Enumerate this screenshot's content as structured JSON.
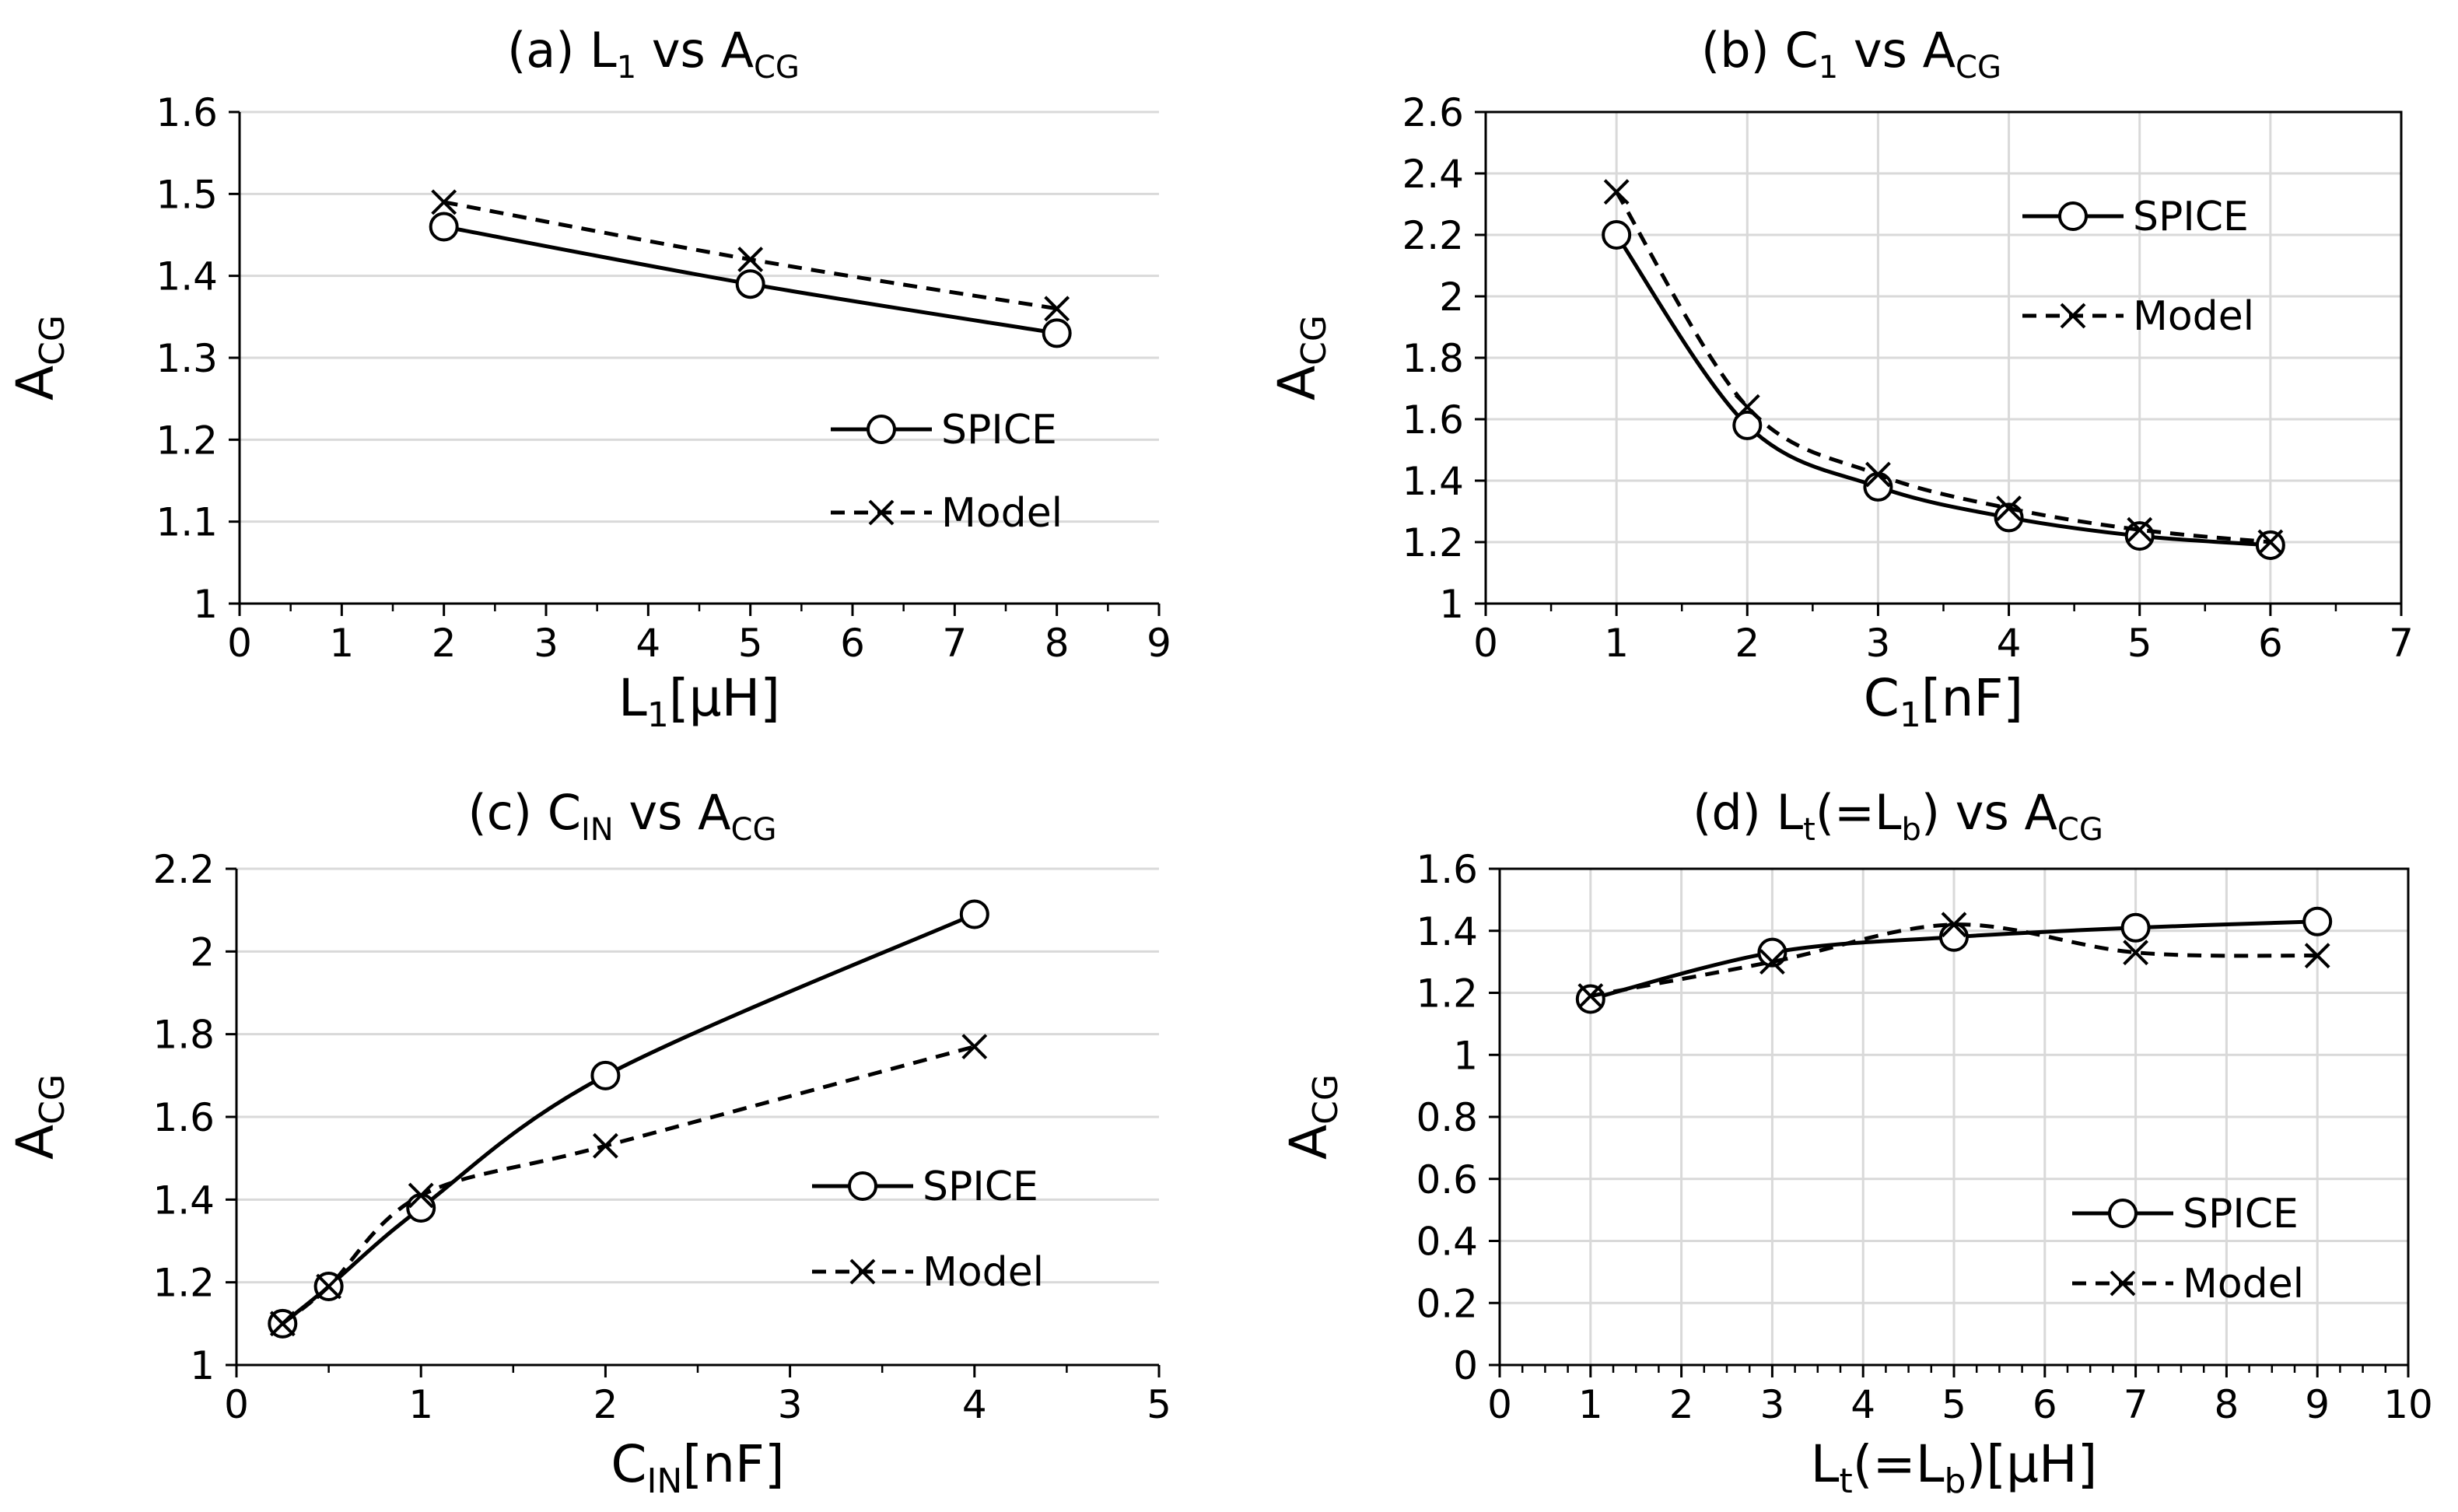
{
  "chart_data": [
    {
      "id": "a",
      "type": "line",
      "title": "(a) L₁ vs A_CG",
      "title_parts": {
        "prefix": "(a) L",
        "sub1": "1",
        "mid": " vs A",
        "sub2": "CG",
        "suffix": ""
      },
      "xlabel": "L₁[μH]",
      "xlabel_parts": {
        "main": "L",
        "sub": "1",
        "rest": "[μH]"
      },
      "ylabel": "A_CG",
      "ylabel_parts": {
        "main": "A",
        "sub": "CG"
      },
      "xlim": [
        0,
        9
      ],
      "xstep": 1,
      "xminor": 0.5,
      "ylim": [
        1,
        1.6
      ],
      "ystep": 0.1,
      "xticks": [
        "0",
        "1",
        "2",
        "3",
        "4",
        "5",
        "6",
        "7",
        "8",
        "9"
      ],
      "yticks": [
        "1",
        "1.1",
        "1.2",
        "1.3",
        "1.4",
        "1.5",
        "1.6"
      ],
      "grid": "horizontal",
      "legend_position": "lower-right",
      "series": [
        {
          "name": "SPICE",
          "style": "solid",
          "marker": "circle",
          "x": [
            2,
            5,
            8
          ],
          "y": [
            1.46,
            1.39,
            1.33
          ]
        },
        {
          "name": "Model",
          "style": "dashed",
          "marker": "cross",
          "x": [
            2,
            5,
            8
          ],
          "y": [
            1.49,
            1.42,
            1.36
          ]
        }
      ]
    },
    {
      "id": "b",
      "type": "line",
      "title": "(b) C₁ vs A_CG",
      "title_parts": {
        "prefix": "(b) C",
        "sub1": "1",
        "mid": " vs A",
        "sub2": "CG",
        "suffix": ""
      },
      "xlabel": "C₁[nF]",
      "xlabel_parts": {
        "main": "C",
        "sub": "1",
        "rest": "[nF]"
      },
      "ylabel": "A_CG",
      "ylabel_parts": {
        "main": "A",
        "sub": "CG"
      },
      "xlim": [
        0,
        7
      ],
      "xstep": 1,
      "xminor": 0.5,
      "ylim": [
        1,
        2.6
      ],
      "ystep": 0.2,
      "xticks": [
        "0",
        "1",
        "2",
        "3",
        "4",
        "5",
        "6",
        "7"
      ],
      "yticks": [
        "1",
        "1.2",
        "1.4",
        "1.6",
        "1.8",
        "2",
        "2.2",
        "2.4",
        "2.6"
      ],
      "grid": "both",
      "legend_position": "upper-right",
      "series": [
        {
          "name": "SPICE",
          "style": "solid",
          "marker": "circle",
          "x": [
            1,
            2,
            3,
            4,
            5,
            6
          ],
          "y": [
            2.2,
            1.58,
            1.38,
            1.28,
            1.22,
            1.19
          ]
        },
        {
          "name": "Model",
          "style": "dashed",
          "marker": "cross",
          "x": [
            1,
            2,
            3,
            4,
            5,
            6
          ],
          "y": [
            2.34,
            1.64,
            1.42,
            1.31,
            1.24,
            1.2
          ]
        }
      ]
    },
    {
      "id": "c",
      "type": "line",
      "title": "(c) C_IN vs A_CG",
      "title_parts": {
        "prefix": "(c) C",
        "sub1": "IN",
        "mid": " vs A",
        "sub2": "CG",
        "suffix": ""
      },
      "xlabel": "C_IN[nF]",
      "xlabel_parts": {
        "main": "C",
        "sub": "IN",
        "rest": "[nF]"
      },
      "ylabel": "A_CG",
      "ylabel_parts": {
        "main": "A",
        "sub": "CG"
      },
      "xlim": [
        0,
        5
      ],
      "xstep": 1,
      "xminor": 0.5,
      "ylim": [
        1,
        2.2
      ],
      "ystep": 0.2,
      "xticks": [
        "0",
        "1",
        "2",
        "3",
        "4",
        "5"
      ],
      "yticks": [
        "1",
        "1.2",
        "1.4",
        "1.6",
        "1.8",
        "2",
        "2.2"
      ],
      "grid": "horizontal",
      "legend_position": "lower-right",
      "series": [
        {
          "name": "SPICE",
          "style": "solid",
          "marker": "circle",
          "x": [
            0.25,
            0.5,
            1,
            2,
            4
          ],
          "y": [
            1.1,
            1.19,
            1.38,
            1.7,
            2.09
          ]
        },
        {
          "name": "Model",
          "style": "dashed",
          "marker": "cross",
          "x": [
            0.25,
            0.5,
            1,
            2,
            4
          ],
          "y": [
            1.1,
            1.19,
            1.41,
            1.53,
            1.77
          ]
        }
      ]
    },
    {
      "id": "d",
      "type": "line",
      "title": "(d) Lt(=Lb) vs A_CG",
      "title_parts": {
        "prefix": "(d) L",
        "sub1": "t",
        "mid": "(=L",
        "sub2": "b",
        "suffix": ") vs A",
        "sub3": "CG"
      },
      "xlabel": "Lt(=Lb)[μH]",
      "xlabel_parts": {
        "main": "L",
        "sub": "t",
        "rest": "(=L",
        "sub2": "b",
        "rest2": ")[μH]"
      },
      "ylabel": "A_CG",
      "ylabel_parts": {
        "main": "A",
        "sub": "CG"
      },
      "xlim": [
        0,
        10
      ],
      "xstep": 1,
      "xminor": 0.25,
      "ylim": [
        0,
        1.6
      ],
      "ystep": 0.2,
      "xticks": [
        "0",
        "1",
        "2",
        "3",
        "4",
        "5",
        "6",
        "7",
        "8",
        "9",
        "10"
      ],
      "yticks": [
        "0",
        "0.2",
        "0.4",
        "0.6",
        "0.8",
        "1",
        "1.2",
        "1.4",
        "1.6"
      ],
      "grid": "both",
      "legend_position": "lower-right",
      "series": [
        {
          "name": "SPICE",
          "style": "solid",
          "marker": "circle",
          "x": [
            1,
            3,
            5,
            7,
            9
          ],
          "y": [
            1.18,
            1.33,
            1.38,
            1.41,
            1.43
          ]
        },
        {
          "name": "Model",
          "style": "dashed",
          "marker": "cross",
          "x": [
            1,
            3,
            5,
            7,
            9
          ],
          "y": [
            1.19,
            1.3,
            1.42,
            1.33,
            1.32
          ]
        }
      ]
    }
  ]
}
